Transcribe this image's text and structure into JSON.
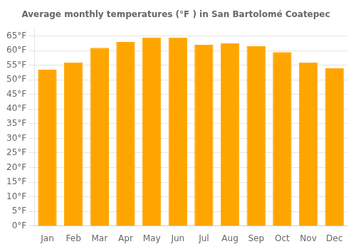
{
  "chart_data": {
    "type": "bar",
    "title": "Average monthly temperatures (°F ) in San Bartolomé Coatepec",
    "categories": [
      "Jan",
      "Feb",
      "Mar",
      "Apr",
      "May",
      "Jun",
      "Jul",
      "Aug",
      "Sep",
      "Oct",
      "Nov",
      "Dec"
    ],
    "values": [
      53.5,
      56.0,
      61.0,
      63.0,
      64.5,
      64.5,
      62.0,
      62.5,
      61.5,
      59.5,
      56.0,
      54.0
    ],
    "color": "#FFA500",
    "ylim": [
      0,
      68
    ],
    "yticks": [
      {
        "value": 0,
        "label": "0°F"
      },
      {
        "value": 5,
        "label": "5°F"
      },
      {
        "value": 10,
        "label": "10°F"
      },
      {
        "value": 15,
        "label": "15°F"
      },
      {
        "value": 20,
        "label": "20°F"
      },
      {
        "value": 25,
        "label": "25°F"
      },
      {
        "value": 30,
        "label": "30°F"
      },
      {
        "value": 35,
        "label": "35°F"
      },
      {
        "value": 40,
        "label": "40°F"
      },
      {
        "value": 45,
        "label": "45°F"
      },
      {
        "value": 50,
        "label": "50°F"
      },
      {
        "value": 55,
        "label": "55°F"
      },
      {
        "value": 60,
        "label": "60°F"
      },
      {
        "value": 65,
        "label": "65°F"
      }
    ],
    "grid": true
  }
}
